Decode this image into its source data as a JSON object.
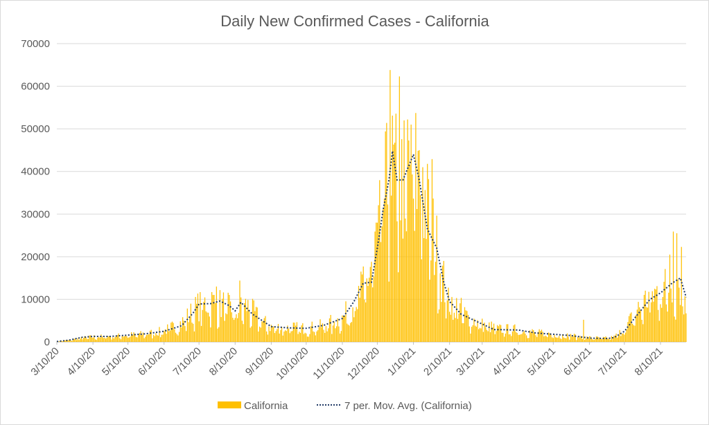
{
  "chart_data": {
    "type": "bar",
    "title": "Daily New Confirmed Cases - California",
    "xlabel": "",
    "ylabel": "",
    "ylim": [
      0,
      70000
    ],
    "yticks": [
      0,
      10000,
      20000,
      30000,
      40000,
      50000,
      60000,
      70000
    ],
    "xlim": [
      "2020-03-10",
      "2021-09-01"
    ],
    "x_tick_labels": [
      "3/10/20",
      "4/10/20",
      "5/10/20",
      "6/10/20",
      "7/10/20",
      "8/10/20",
      "9/10/20",
      "10/10/20",
      "11/10/20",
      "12/10/20",
      "1/10/21",
      "2/10/21",
      "3/10/21",
      "4/10/21",
      "5/10/21",
      "6/10/21",
      "7/10/21",
      "8/10/21"
    ],
    "grid": true,
    "legend_position": "bottom",
    "series": [
      {
        "name": "California",
        "kind": "bar",
        "color": "#FFC000",
        "note": "daily values approximated from visual trend",
        "anchors": [
          [
            "3/10/20",
            100
          ],
          [
            "3/20/20",
            400
          ],
          [
            "3/31/20",
            900
          ],
          [
            "4/10/20",
            1200
          ],
          [
            "4/25/20",
            1300
          ],
          [
            "5/10/20",
            1600
          ],
          [
            "5/25/20",
            1900
          ],
          [
            "6/10/20",
            2600
          ],
          [
            "6/25/20",
            4500
          ],
          [
            "7/10/20",
            8500
          ],
          [
            "7/20/20",
            9500
          ],
          [
            "8/1/20",
            8500
          ],
          [
            "8/10/20",
            7000
          ],
          [
            "8/20/20",
            8500
          ],
          [
            "9/1/20",
            5000
          ],
          [
            "9/10/20",
            3500
          ],
          [
            "10/10/20",
            3200
          ],
          [
            "10/25/20",
            3800
          ],
          [
            "11/10/20",
            5500
          ],
          [
            "11/25/20",
            11000
          ],
          [
            "12/1/20",
            14000
          ],
          [
            "12/10/20",
            25000
          ],
          [
            "12/15/20",
            33000
          ],
          [
            "12/22/20",
            40000
          ],
          [
            "12/28/20",
            37000
          ],
          [
            "1/3/21",
            38000
          ],
          [
            "1/10/21",
            42000
          ],
          [
            "1/20/21",
            33000
          ],
          [
            "1/28/21",
            24000
          ],
          [
            "2/5/21",
            14000
          ],
          [
            "2/10/21",
            10000
          ],
          [
            "2/25/21",
            6000
          ],
          [
            "3/10/21",
            4000
          ],
          [
            "3/25/21",
            3000
          ],
          [
            "4/10/21",
            2900
          ],
          [
            "4/25/21",
            2200
          ],
          [
            "5/10/21",
            1700
          ],
          [
            "5/25/21",
            1500
          ],
          [
            "6/10/21",
            1000
          ],
          [
            "6/25/21",
            900
          ],
          [
            "7/1/21",
            1100
          ],
          [
            "7/10/21",
            3000
          ],
          [
            "7/20/21",
            7000
          ],
          [
            "8/1/21",
            11000
          ],
          [
            "8/10/21",
            12000
          ],
          [
            "8/20/21",
            14000
          ],
          [
            "8/25/21",
            15000
          ],
          [
            "9/1/21",
            10500
          ]
        ],
        "peaks": [
          [
            "12/21/20",
            63800
          ],
          [
            "12/29/20",
            62300
          ],
          [
            "1/8/21",
            51000
          ],
          [
            "1/15/21",
            45000
          ],
          [
            "1/26/21",
            42900
          ],
          [
            "7/25/20",
            13000
          ],
          [
            "8/14/20",
            14400
          ],
          [
            "8/18/21",
            20500
          ],
          [
            "8/21/21",
            25900
          ],
          [
            "8/24/21",
            25500
          ],
          [
            "8/28/21",
            22300
          ],
          [
            "6/5/21",
            5200
          ],
          [
            "11/26/20",
            16500
          ],
          [
            "12/9/20",
            28000
          ],
          [
            "1/5/21",
            52200
          ],
          [
            "1/18/21",
            41000
          ]
        ]
      },
      {
        "name": "7 per. Mov. Avg. (California)",
        "kind": "line",
        "color": "#1F3864",
        "style": "dotted",
        "anchors": [
          [
            "3/10/20",
            100
          ],
          [
            "3/20/20",
            400
          ],
          [
            "4/1/20",
            1100
          ],
          [
            "4/10/20",
            1300
          ],
          [
            "4/25/20",
            1300
          ],
          [
            "5/10/20",
            1600
          ],
          [
            "5/25/20",
            1900
          ],
          [
            "6/10/20",
            2500
          ],
          [
            "6/25/20",
            3800
          ],
          [
            "7/5/20",
            6800
          ],
          [
            "7/10/20",
            8900
          ],
          [
            "7/20/20",
            9000
          ],
          [
            "7/28/20",
            9600
          ],
          [
            "8/5/20",
            8500
          ],
          [
            "8/10/20",
            7300
          ],
          [
            "8/15/20",
            9300
          ],
          [
            "8/25/20",
            6500
          ],
          [
            "9/10/20",
            3600
          ],
          [
            "9/25/20",
            3300
          ],
          [
            "10/10/20",
            3200
          ],
          [
            "10/25/20",
            3900
          ],
          [
            "11/10/20",
            5500
          ],
          [
            "11/20/20",
            9500
          ],
          [
            "11/28/20",
            13800
          ],
          [
            "12/5/20",
            14000
          ],
          [
            "12/10/20",
            22000
          ],
          [
            "12/15/20",
            31000
          ],
          [
            "12/20/20",
            38000
          ],
          [
            "12/23/20",
            44800
          ],
          [
            "12/27/20",
            38000
          ],
          [
            "1/1/21",
            38000
          ],
          [
            "1/10/21",
            44000
          ],
          [
            "1/15/21",
            38000
          ],
          [
            "1/22/21",
            26500
          ],
          [
            "1/30/21",
            22000
          ],
          [
            "2/5/21",
            14000
          ],
          [
            "2/10/21",
            9500
          ],
          [
            "2/20/21",
            6500
          ],
          [
            "3/10/21",
            4200
          ],
          [
            "3/20/21",
            2900
          ],
          [
            "4/10/21",
            2800
          ],
          [
            "4/25/21",
            2100
          ],
          [
            "5/10/21",
            1800
          ],
          [
            "5/25/21",
            1500
          ],
          [
            "6/10/21",
            900
          ],
          [
            "6/25/21",
            800
          ],
          [
            "7/1/21",
            1000
          ],
          [
            "7/10/21",
            2500
          ],
          [
            "7/20/21",
            6000
          ],
          [
            "8/1/21",
            10000
          ],
          [
            "8/10/21",
            11500
          ],
          [
            "8/20/21",
            13800
          ],
          [
            "8/27/21",
            15000
          ],
          [
            "9/1/21",
            10500
          ]
        ]
      }
    ]
  }
}
